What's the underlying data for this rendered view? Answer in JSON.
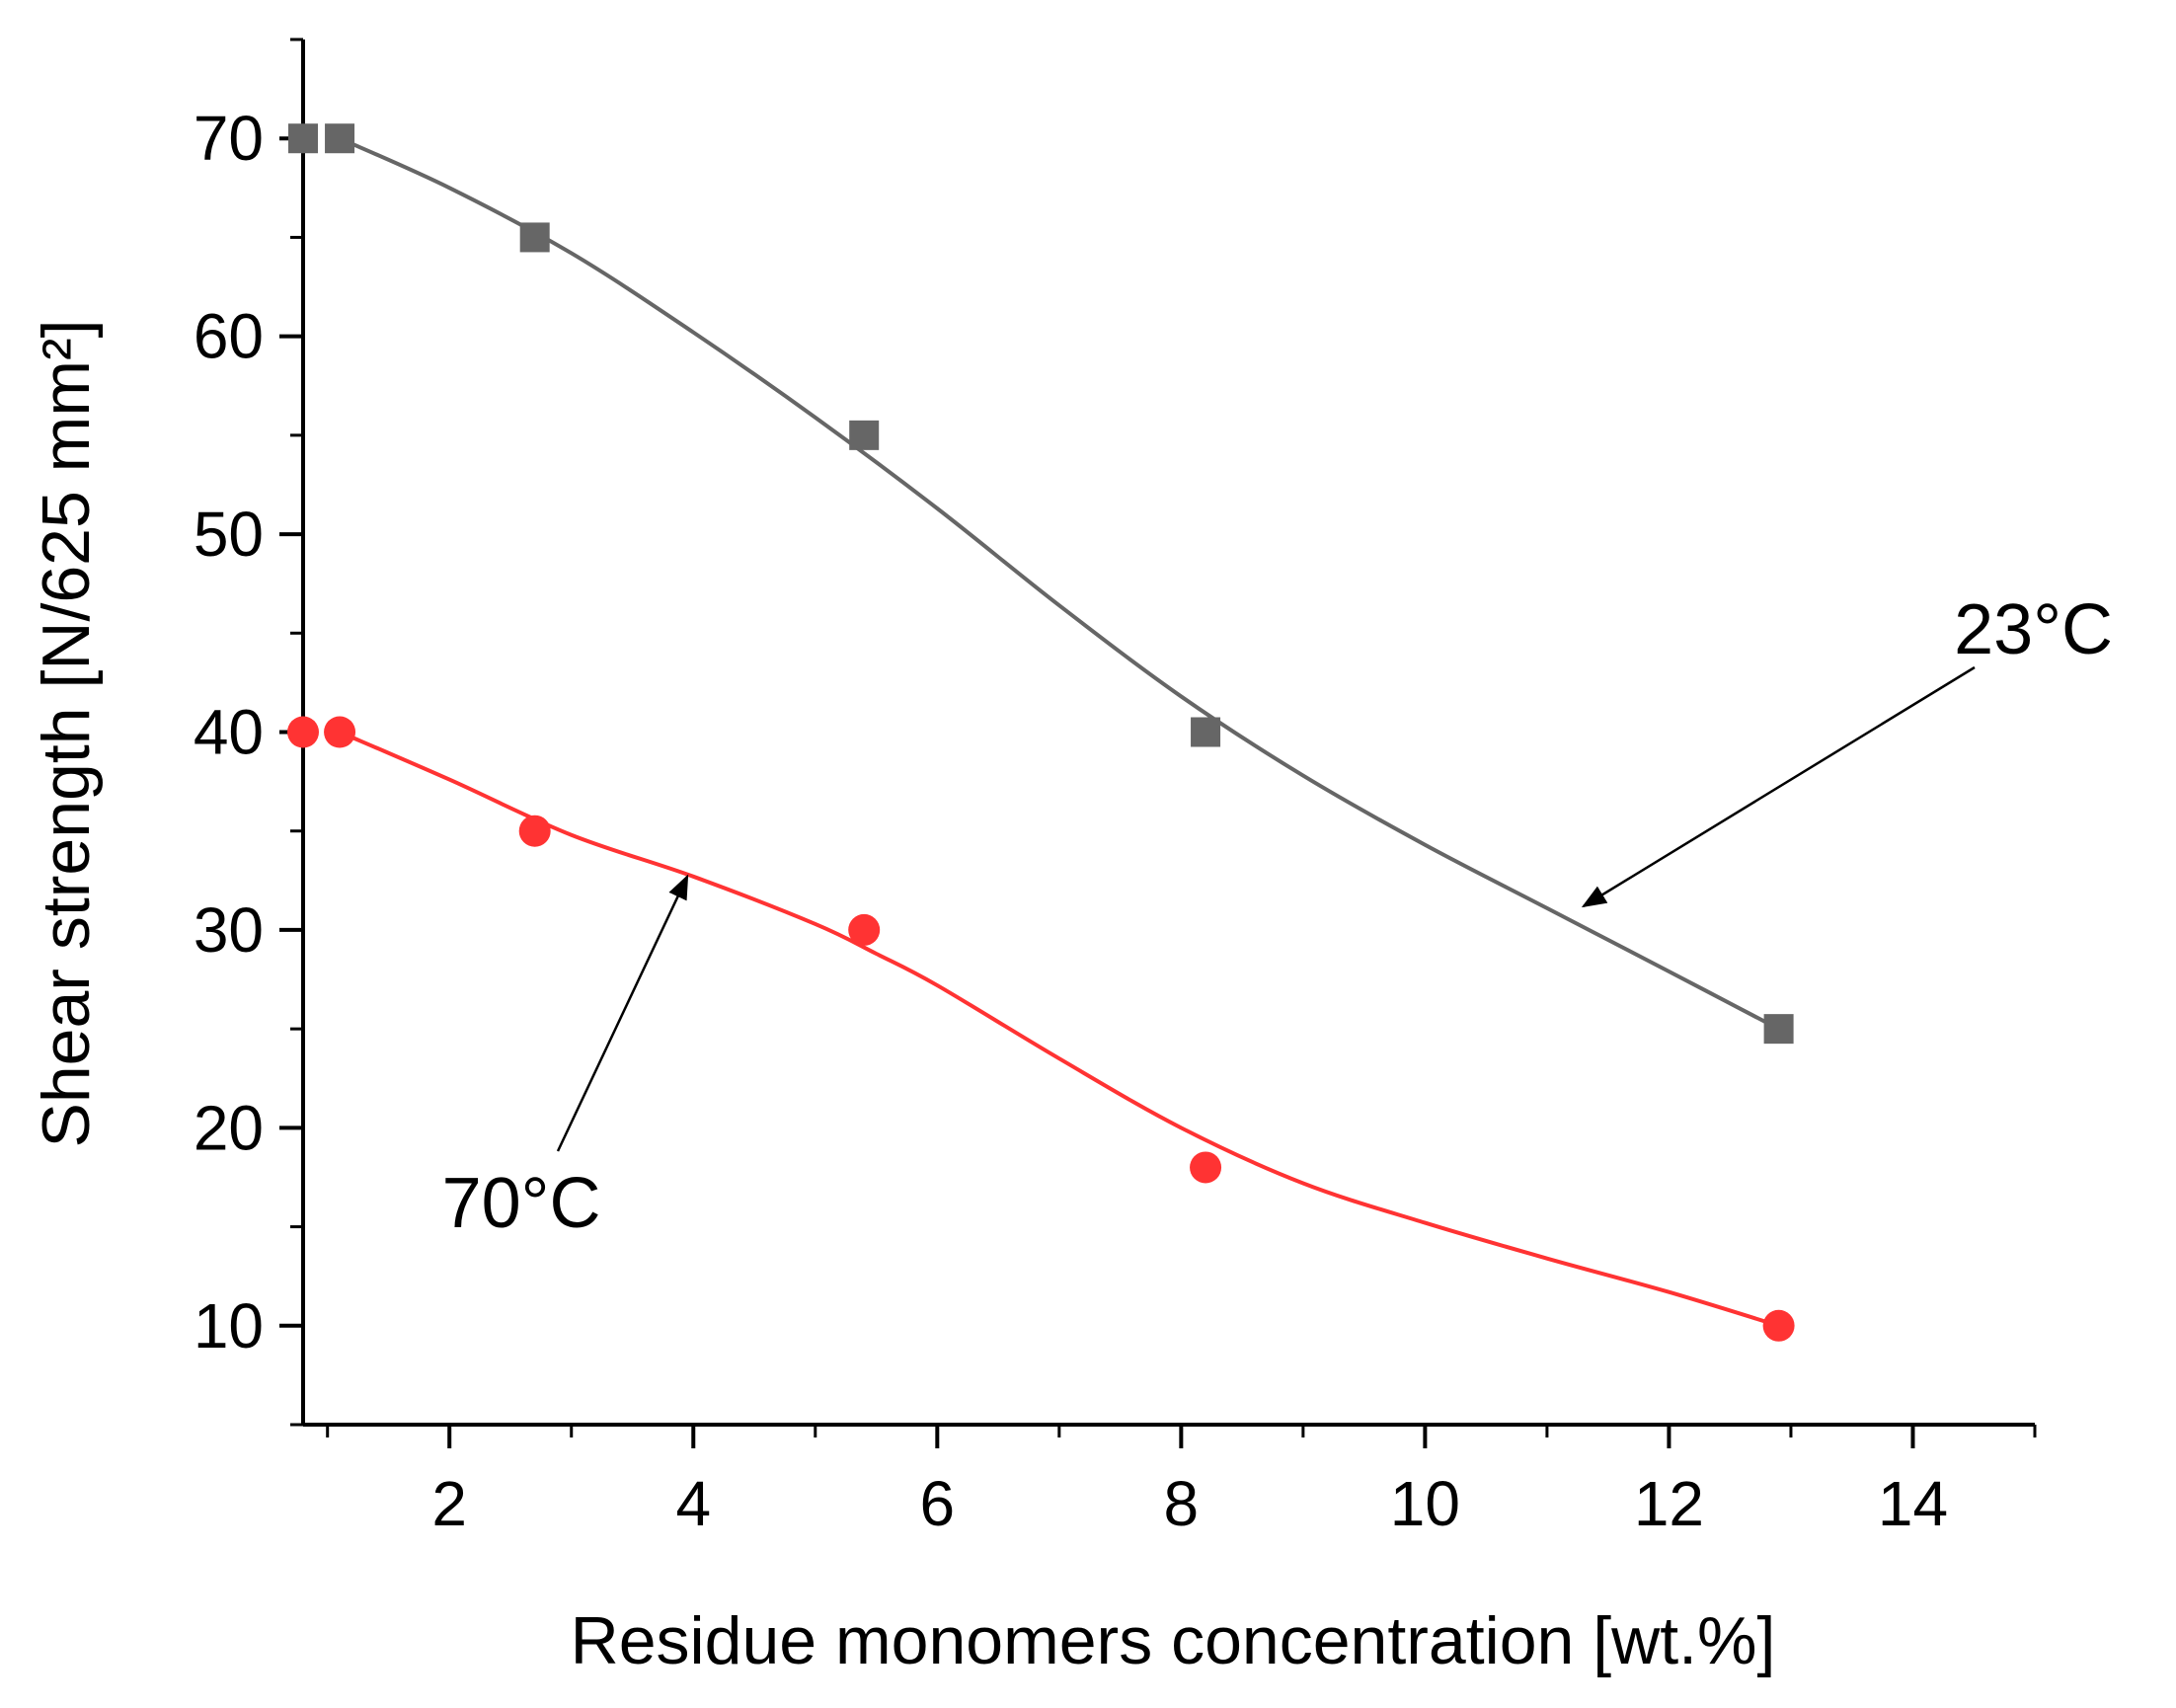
{
  "chart_data": {
    "type": "line",
    "title": "",
    "xlabel": "Residue monomers concentration [wt.%]",
    "ylabel": "Shear strength [N/625 mm²]",
    "xlim": [
      0.8,
      15
    ],
    "ylim": [
      5,
      75
    ],
    "xticks": [
      2,
      4,
      6,
      8,
      10,
      12,
      14
    ],
    "yticks": [
      10,
      20,
      30,
      40,
      50,
      60,
      70
    ],
    "grid": false,
    "legend": "none",
    "series": [
      {
        "name": "23°C",
        "color": "#666666",
        "marker": "square",
        "x": [
          0.8,
          1.1,
          2.7,
          5.4,
          8.2,
          12.9
        ],
        "y": [
          70,
          70,
          65,
          55,
          40,
          25
        ],
        "curve_x": [
          1.1,
          2.0,
          3.0,
          4.0,
          5.0,
          6.0,
          7.0,
          8.0,
          9.0,
          10.0,
          11.0,
          12.0,
          12.9
        ],
        "curve_y": [
          70,
          67.5,
          64.2,
          60.2,
          55.9,
          51.3,
          46.4,
          41.8,
          37.8,
          34.3,
          31.1,
          27.9,
          25
        ]
      },
      {
        "name": "70°C",
        "color": "#ff3333",
        "marker": "circle",
        "x": [
          0.8,
          1.1,
          2.7,
          5.4,
          8.2,
          12.9
        ],
        "y": [
          40,
          40,
          35,
          30,
          18,
          10
        ],
        "curve_x": [
          1.1,
          2.0,
          3.0,
          4.0,
          5.0,
          5.5,
          6.0,
          7.0,
          8.0,
          9.0,
          10.0,
          11.0,
          12.0,
          12.9
        ],
        "curve_y": [
          40,
          37.6,
          34.8,
          32.7,
          30.3,
          28.8,
          27.2,
          23.5,
          20.0,
          17.2,
          15.2,
          13.4,
          11.7,
          10
        ]
      }
    ],
    "annotations": [
      {
        "text": "23°C",
        "arrow_to": [
          11.3,
          31.2
        ]
      },
      {
        "text": "70°C",
        "arrow_to": [
          3.95,
          32.7
        ]
      }
    ]
  }
}
